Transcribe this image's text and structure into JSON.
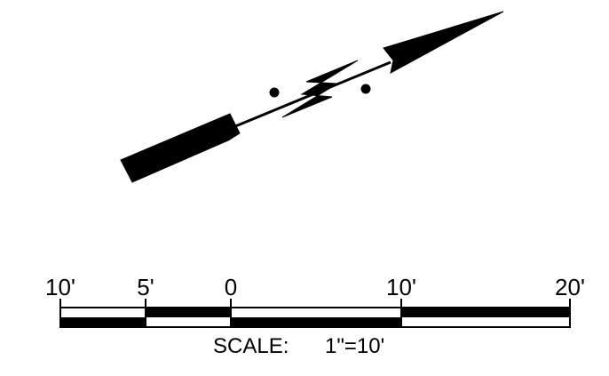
{
  "north_arrow": {
    "label": "",
    "icon": "north-arrow-icon",
    "color": "#000000"
  },
  "scale_bar": {
    "tick_labels": [
      "10'",
      "5'",
      "0",
      "10'",
      "20'"
    ],
    "caption_prefix": "SCALE:",
    "caption_value": "1\"=10'",
    "segment_colors": [
      "#000000",
      "#ffffff"
    ]
  }
}
